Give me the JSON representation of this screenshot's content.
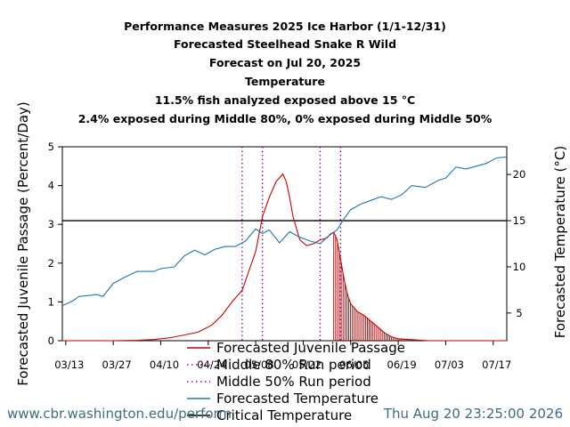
{
  "titles": [
    "Performance Measures 2025 Ice Harbor (1/1-12/31)",
    "Forecasted Steelhead Snake R Wild",
    "Forecast on Jul 20, 2025",
    "Temperature",
    "11.5% fish analyzed exposed above 15 °C",
    "2.4% exposed during Middle 80%, 0% exposed during Middle 50%"
  ],
  "footer": {
    "url": "www.cbr.washington.edu/perform",
    "timestamp": "Thu Aug 20 23:25:00 2026"
  },
  "chart_data": {
    "type": "line",
    "ylabel": "Forecasted Juvenile Passage (Percent/Day)",
    "y2label": "Forecasted Temperature (°C)",
    "ylim": [
      0,
      5
    ],
    "y2lim": [
      2,
      23
    ],
    "yticks": [
      0,
      1,
      2,
      3,
      4,
      5
    ],
    "y2ticks": [
      5,
      10,
      15,
      20
    ],
    "xlim": [
      "2025-03-12",
      "2025-07-21"
    ],
    "xticks": [
      {
        "date": "2025-03-13",
        "label": "03/13"
      },
      {
        "date": "2025-03-27",
        "label": "03/27"
      },
      {
        "date": "2025-04-10",
        "label": "04/10"
      },
      {
        "date": "2025-04-24",
        "label": "04/24"
      },
      {
        "date": "2025-05-08",
        "label": "05/08"
      },
      {
        "date": "2025-05-22",
        "label": "05/22"
      },
      {
        "date": "2025-06-05",
        "label": "06/05"
      },
      {
        "date": "2025-06-19",
        "label": "06/19"
      },
      {
        "date": "2025-07-03",
        "label": "07/03"
      },
      {
        "date": "2025-07-17",
        "label": "07/17"
      }
    ],
    "critical_temperature": 15,
    "middle80_dates": [
      "2025-05-04",
      "2025-06-02"
    ],
    "middle50_dates": [
      "2025-05-10",
      "2025-05-27"
    ],
    "exposed_start_date": "2025-05-31",
    "legend": [
      {
        "label": "Forecasted Juvenile Passage",
        "color": "#cc0000",
        "style": "solid"
      },
      {
        "label": "Middle 80% Run period",
        "color": "#990099",
        "style": "dotted"
      },
      {
        "label": "Middle 50% Run period",
        "color": "#990099",
        "style": "dotted"
      },
      {
        "label": "Forecasted Temperature",
        "color": "#1f77b4",
        "style": "solid"
      },
      {
        "label": "Critical Temperature",
        "color": "#000000",
        "style": "solid"
      }
    ],
    "series": [
      {
        "name": "Forecasted Juvenile Passage",
        "axis": "left",
        "color": "#cc0000",
        "points": [
          [
            "2025-03-12",
            0
          ],
          [
            "2025-03-27",
            0
          ],
          [
            "2025-04-03",
            0.01
          ],
          [
            "2025-04-08",
            0.03
          ],
          [
            "2025-04-13",
            0.08
          ],
          [
            "2025-04-17",
            0.15
          ],
          [
            "2025-04-21",
            0.22
          ],
          [
            "2025-04-25",
            0.4
          ],
          [
            "2025-04-28",
            0.65
          ],
          [
            "2025-05-01",
            1.0
          ],
          [
            "2025-05-04",
            1.3
          ],
          [
            "2025-05-06",
            1.8
          ],
          [
            "2025-05-08",
            2.3
          ],
          [
            "2025-05-10",
            3.2
          ],
          [
            "2025-05-12",
            3.7
          ],
          [
            "2025-05-14",
            4.1
          ],
          [
            "2025-05-16",
            4.3
          ],
          [
            "2025-05-17",
            4.1
          ],
          [
            "2025-05-18",
            3.7
          ],
          [
            "2025-05-19",
            3.2
          ],
          [
            "2025-05-21",
            2.6
          ],
          [
            "2025-05-23",
            2.45
          ],
          [
            "2025-05-25",
            2.5
          ],
          [
            "2025-05-27",
            2.6
          ],
          [
            "2025-05-29",
            2.65
          ],
          [
            "2025-05-30",
            2.75
          ],
          [
            "2025-05-31",
            2.8
          ],
          [
            "2025-06-01",
            2.6
          ],
          [
            "2025-06-02",
            2.1
          ],
          [
            "2025-06-03",
            1.6
          ],
          [
            "2025-06-04",
            1.2
          ],
          [
            "2025-06-05",
            0.95
          ],
          [
            "2025-06-07",
            0.75
          ],
          [
            "2025-06-09",
            0.65
          ],
          [
            "2025-06-11",
            0.5
          ],
          [
            "2025-06-13",
            0.35
          ],
          [
            "2025-06-15",
            0.2
          ],
          [
            "2025-06-17",
            0.1
          ],
          [
            "2025-06-19",
            0.05
          ],
          [
            "2025-06-24",
            0.02
          ],
          [
            "2025-06-28",
            0.0
          ],
          [
            "2025-07-21",
            0
          ]
        ]
      },
      {
        "name": "Forecasted Temperature",
        "axis": "right",
        "color": "#1f77b4",
        "points": [
          [
            "2025-03-12",
            5.8
          ],
          [
            "2025-03-15",
            6.3
          ],
          [
            "2025-03-17",
            6.8
          ],
          [
            "2025-03-20",
            6.9
          ],
          [
            "2025-03-22",
            7.0
          ],
          [
            "2025-03-24",
            6.8
          ],
          [
            "2025-03-27",
            8.2
          ],
          [
            "2025-03-30",
            8.8
          ],
          [
            "2025-04-03",
            9.5
          ],
          [
            "2025-04-08",
            9.5
          ],
          [
            "2025-04-10",
            9.8
          ],
          [
            "2025-04-14",
            10.0
          ],
          [
            "2025-04-17",
            11.2
          ],
          [
            "2025-04-20",
            11.8
          ],
          [
            "2025-04-23",
            11.3
          ],
          [
            "2025-04-26",
            11.9
          ],
          [
            "2025-04-29",
            12.2
          ],
          [
            "2025-05-02",
            12.2
          ],
          [
            "2025-05-05",
            12.8
          ],
          [
            "2025-05-08",
            14.1
          ],
          [
            "2025-05-10",
            13.6
          ],
          [
            "2025-05-12",
            14.0
          ],
          [
            "2025-05-15",
            12.6
          ],
          [
            "2025-05-18",
            13.8
          ],
          [
            "2025-05-21",
            13.2
          ],
          [
            "2025-05-24",
            12.8
          ],
          [
            "2025-05-27",
            12.5
          ],
          [
            "2025-05-29",
            13.2
          ],
          [
            "2025-06-01",
            14.0
          ],
          [
            "2025-06-03",
            15.2
          ],
          [
            "2025-06-05",
            16.2
          ],
          [
            "2025-06-08",
            16.8
          ],
          [
            "2025-06-11",
            17.2
          ],
          [
            "2025-06-14",
            17.6
          ],
          [
            "2025-06-17",
            17.3
          ],
          [
            "2025-06-20",
            17.8
          ],
          [
            "2025-06-23",
            18.8
          ],
          [
            "2025-06-27",
            18.6
          ],
          [
            "2025-07-01",
            19.4
          ],
          [
            "2025-07-03",
            19.6
          ],
          [
            "2025-07-06",
            20.8
          ],
          [
            "2025-07-09",
            20.6
          ],
          [
            "2025-07-12",
            20.9
          ],
          [
            "2025-07-15",
            21.2
          ],
          [
            "2025-07-18",
            21.8
          ],
          [
            "2025-07-21",
            21.9
          ]
        ]
      }
    ]
  }
}
